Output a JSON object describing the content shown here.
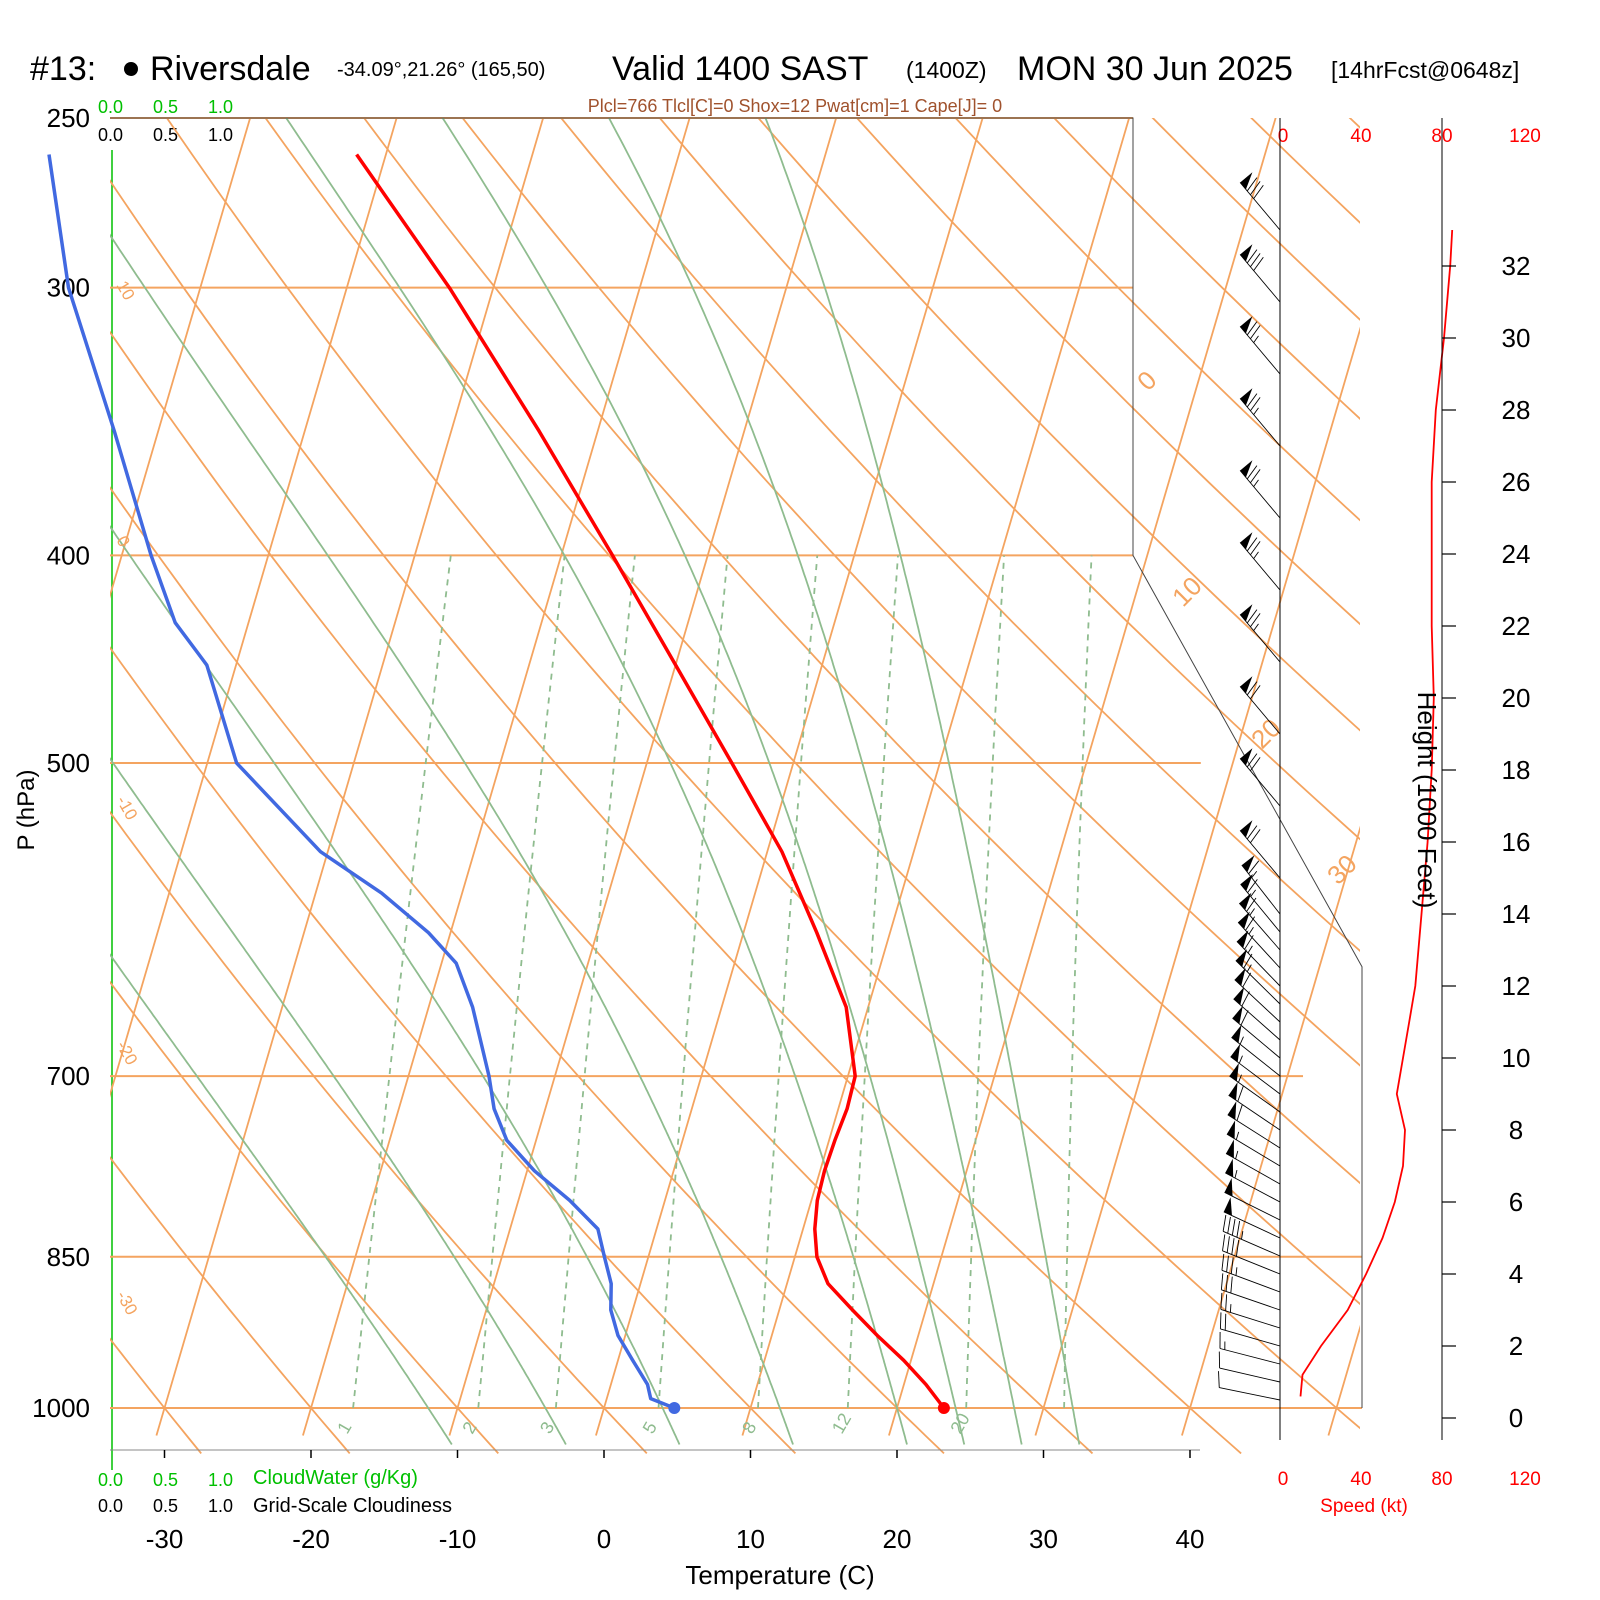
{
  "header": {
    "station_id": "#13:",
    "station_name": "Riversdale",
    "station_coords": "-34.09°,21.26° (165,50)",
    "valid_label": "Valid 1400 SAST",
    "zulu": "(1400Z)",
    "date": "MON 30 Jun 2025",
    "forecast": "[14hrFcst@0648z]"
  },
  "indices_line": "Plcl=766 Tlcl[C]=0 Shox=12 Pwat[cm]=1 Cape[J]= 0",
  "cloud_scale": {
    "green_ticks": [
      "0.0",
      "0.5",
      "1.0"
    ],
    "black_ticks": [
      "0.0",
      "0.5",
      "1.0"
    ],
    "green_label": "CloudWater (g/Kg)",
    "black_label": "Grid-Scale Cloudiness"
  },
  "colors": {
    "temperature": "#ff0000",
    "dewpoint": "#4169e1",
    "isotherm": "#f4a460",
    "dry_adiabat": "#f4a460",
    "moist_adiabat": "#8fbc8f",
    "mixing_ratio": "#8fbc8f",
    "cloudwater": "#00c000",
    "wind_speed": "#ff0000"
  },
  "chart_data": {
    "type": "skew-t",
    "xlabel": "Temperature (C)",
    "ylabel": "P (hPa)",
    "y2label": "Height (1000 Feet)",
    "xlim": [
      -30,
      40
    ],
    "ylim": [
      1015,
      250
    ],
    "x_ticks": [
      -30,
      -20,
      -10,
      0,
      10,
      20,
      30,
      40
    ],
    "pressure_levels": [
      1000,
      850,
      700,
      500,
      400,
      300,
      250
    ],
    "height_ticks_kft": [
      0,
      2,
      4,
      6,
      8,
      10,
      12,
      14,
      16,
      18,
      20,
      22,
      24,
      26,
      28,
      30,
      32
    ],
    "isotherm_labels": [
      {
        "temp": 10,
        "text": "10"
      },
      {
        "temp": 0,
        "text": "0"
      },
      {
        "temp": -10,
        "text": "-10"
      },
      {
        "temp": -20,
        "text": "-20"
      },
      {
        "temp": -30,
        "text": "-30"
      }
    ],
    "isotherm_right_labels": [
      {
        "temp": 0,
        "text": "0"
      },
      {
        "temp": 10,
        "text": "10"
      },
      {
        "temp": 20,
        "text": "20"
      },
      {
        "temp": 30,
        "text": "30"
      }
    ],
    "mixing_ratio_labels": [
      "1",
      "2",
      "3",
      "5",
      "8",
      "12",
      "20"
    ],
    "mixing_ratios_gkg": [
      1,
      2,
      3,
      5,
      8,
      12,
      20
    ],
    "temperature": [
      {
        "p": 1000,
        "t": 23.2
      },
      {
        "p": 975,
        "t": 21.5
      },
      {
        "p": 950,
        "t": 19.5
      },
      {
        "p": 925,
        "t": 17.2
      },
      {
        "p": 900,
        "t": 15.0
      },
      {
        "p": 875,
        "t": 12.8
      },
      {
        "p": 850,
        "t": 11.5
      },
      {
        "p": 825,
        "t": 10.8
      },
      {
        "p": 800,
        "t": 10.4
      },
      {
        "p": 775,
        "t": 10.3
      },
      {
        "p": 750,
        "t": 10.4
      },
      {
        "p": 725,
        "t": 10.6
      },
      {
        "p": 700,
        "t": 10.5
      },
      {
        "p": 650,
        "t": 8.5
      },
      {
        "p": 600,
        "t": 5.0
      },
      {
        "p": 550,
        "t": 1.0
      },
      {
        "p": 500,
        "t": -4.2
      },
      {
        "p": 450,
        "t": -10.0
      },
      {
        "p": 400,
        "t": -16.5
      },
      {
        "p": 350,
        "t": -24.0
      },
      {
        "p": 300,
        "t": -33.0
      },
      {
        "p": 260,
        "t": -42.0
      }
    ],
    "dewpoint": [
      {
        "p": 1000,
        "t": 4.8
      },
      {
        "p": 990,
        "t": 3.0
      },
      {
        "p": 975,
        "t": 2.5
      },
      {
        "p": 950,
        "t": 1.0
      },
      {
        "p": 925,
        "t": -0.5
      },
      {
        "p": 900,
        "t": -1.5
      },
      {
        "p": 875,
        "t": -2.0
      },
      {
        "p": 850,
        "t": -3.0
      },
      {
        "p": 825,
        "t": -4.0
      },
      {
        "p": 800,
        "t": -6.5
      },
      {
        "p": 775,
        "t": -9.5
      },
      {
        "p": 750,
        "t": -12.0
      },
      {
        "p": 725,
        "t": -13.5
      },
      {
        "p": 700,
        "t": -14.5
      },
      {
        "p": 650,
        "t": -17.0
      },
      {
        "p": 620,
        "t": -19.0
      },
      {
        "p": 600,
        "t": -21.5
      },
      {
        "p": 575,
        "t": -25.5
      },
      {
        "p": 550,
        "t": -30.5
      },
      {
        "p": 500,
        "t": -38.0
      },
      {
        "p": 450,
        "t": -42.0
      },
      {
        "p": 430,
        "t": -45.0
      },
      {
        "p": 400,
        "t": -48.0
      },
      {
        "p": 350,
        "t": -53.0
      },
      {
        "p": 300,
        "t": -59.0
      },
      {
        "p": 260,
        "t": -63.0
      }
    ],
    "wind_speed_axis": {
      "label": "Speed (kt)",
      "ticks": [
        "0",
        "40",
        "80",
        "120"
      ],
      "xlim": [
        0,
        120
      ]
    },
    "wind_speed_profile": [
      {
        "kft": 0.6,
        "kt": 10
      },
      {
        "kft": 1.2,
        "kt": 11
      },
      {
        "kft": 2.0,
        "kt": 20
      },
      {
        "kft": 3.0,
        "kt": 33
      },
      {
        "kft": 4.0,
        "kt": 42
      },
      {
        "kft": 5.0,
        "kt": 50
      },
      {
        "kft": 6.0,
        "kt": 56
      },
      {
        "kft": 7.0,
        "kt": 60
      },
      {
        "kft": 8.0,
        "kt": 61
      },
      {
        "kft": 9.0,
        "kt": 57
      },
      {
        "kft": 10.0,
        "kt": 60
      },
      {
        "kft": 11.0,
        "kt": 63
      },
      {
        "kft": 12.0,
        "kt": 66
      },
      {
        "kft": 14.0,
        "kt": 69
      },
      {
        "kft": 16.0,
        "kt": 72
      },
      {
        "kft": 18.0,
        "kt": 74
      },
      {
        "kft": 20.0,
        "kt": 75
      },
      {
        "kft": 22.0,
        "kt": 74
      },
      {
        "kft": 24.0,
        "kt": 74
      },
      {
        "kft": 26.0,
        "kt": 74
      },
      {
        "kft": 28.0,
        "kt": 76
      },
      {
        "kft": 30.0,
        "kt": 80
      },
      {
        "kft": 32.0,
        "kt": 83
      },
      {
        "kft": 33.0,
        "kt": 84
      }
    ],
    "wind_barbs": [
      {
        "kft": 0.5,
        "speed_kt": 10
      },
      {
        "kft": 1.0,
        "speed_kt": 12
      },
      {
        "kft": 1.5,
        "speed_kt": 15
      },
      {
        "kft": 2.0,
        "speed_kt": 20
      },
      {
        "kft": 2.5,
        "speed_kt": 25
      },
      {
        "kft": 3.0,
        "speed_kt": 30
      },
      {
        "kft": 3.5,
        "speed_kt": 35
      },
      {
        "kft": 4.0,
        "speed_kt": 40
      },
      {
        "kft": 4.5,
        "speed_kt": 45
      },
      {
        "kft": 5.0,
        "speed_kt": 50
      },
      {
        "kft": 5.5,
        "speed_kt": 50
      },
      {
        "kft": 6.0,
        "speed_kt": 55
      },
      {
        "kft": 6.5,
        "speed_kt": 55
      },
      {
        "kft": 7.0,
        "speed_kt": 55
      },
      {
        "kft": 7.5,
        "speed_kt": 60
      },
      {
        "kft": 8.0,
        "speed_kt": 60
      },
      {
        "kft": 8.5,
        "speed_kt": 55
      },
      {
        "kft": 9.0,
        "speed_kt": 55
      },
      {
        "kft": 9.5,
        "speed_kt": 55
      },
      {
        "kft": 10.0,
        "speed_kt": 60
      },
      {
        "kft": 10.5,
        "speed_kt": 60
      },
      {
        "kft": 11.0,
        "speed_kt": 60
      },
      {
        "kft": 11.5,
        "speed_kt": 65
      },
      {
        "kft": 12.0,
        "speed_kt": 65
      },
      {
        "kft": 12.5,
        "speed_kt": 65
      },
      {
        "kft": 13.0,
        "speed_kt": 65
      },
      {
        "kft": 13.5,
        "speed_kt": 65
      },
      {
        "kft": 14.0,
        "speed_kt": 65
      },
      {
        "kft": 15.0,
        "speed_kt": 70
      },
      {
        "kft": 17.0,
        "speed_kt": 70
      },
      {
        "kft": 19.0,
        "speed_kt": 70
      },
      {
        "kft": 21.0,
        "speed_kt": 75
      },
      {
        "kft": 23.0,
        "speed_kt": 75
      },
      {
        "kft": 25.0,
        "speed_kt": 75
      },
      {
        "kft": 27.0,
        "speed_kt": 75
      },
      {
        "kft": 29.0,
        "speed_kt": 75
      },
      {
        "kft": 31.0,
        "speed_kt": 80
      },
      {
        "kft": 33.0,
        "speed_kt": 80
      }
    ]
  }
}
